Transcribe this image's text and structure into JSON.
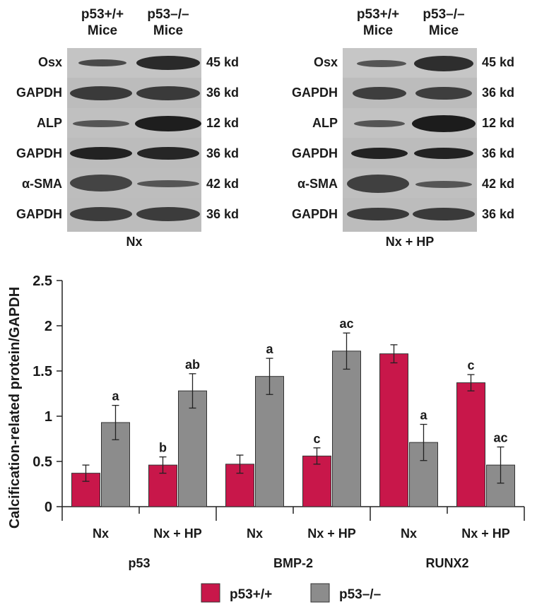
{
  "blots": {
    "left": {
      "header": {
        "col1_line1": "p53+/+",
        "col1_line2": "Mice",
        "col2_line1": "p53–/–",
        "col2_line2": "Mice"
      },
      "caption": "Nx",
      "rows": [
        {
          "protein": "Osx",
          "size": "45 kd"
        },
        {
          "protein": "GAPDH",
          "size": "36 kd"
        },
        {
          "protein": "ALP",
          "size": "12 kd"
        },
        {
          "protein": "GAPDH",
          "size": "36 kd"
        },
        {
          "protein": "α-SMA",
          "size": "42 kd"
        },
        {
          "protein": "GAPDH",
          "size": "36 kd"
        }
      ]
    },
    "right": {
      "header": {
        "col1_line1": "p53+/+",
        "col1_line2": "Mice",
        "col2_line1": "p53–/–",
        "col2_line2": "Mice"
      },
      "caption": "Nx + HP",
      "rows": [
        {
          "protein": "Osx",
          "size": "45 kd"
        },
        {
          "protein": "GAPDH",
          "size": "36 kd"
        },
        {
          "protein": "ALP",
          "size": "12 kd"
        },
        {
          "protein": "GAPDH",
          "size": "36 kd"
        },
        {
          "protein": "α-SMA",
          "size": "42 kd"
        },
        {
          "protein": "GAPDH",
          "size": "36 kd"
        }
      ]
    }
  },
  "chart_data": {
    "type": "bar",
    "title": "",
    "ylabel": "Calcification-related protein/GAPDH",
    "ylim": [
      0,
      2.5
    ],
    "yticks": [
      "0",
      "0.5",
      "1",
      "1.5",
      "2",
      "2.5"
    ],
    "groups": [
      "p53",
      "BMP-2",
      "RUNX2"
    ],
    "conditions": [
      "Nx",
      "Nx + HP",
      "Nx",
      "Nx + HP",
      "Nx",
      "Nx + HP"
    ],
    "legend_position": "bottom",
    "series": [
      {
        "name": "p53+/+",
        "color": "#c8174a",
        "values": [
          0.37,
          0.46,
          0.47,
          0.56,
          1.69,
          1.37
        ],
        "errors": [
          0.09,
          0.09,
          0.1,
          0.09,
          0.1,
          0.09
        ],
        "annotations": [
          "",
          "b",
          "",
          "c",
          "",
          "c"
        ]
      },
      {
        "name": "p53–/–",
        "color": "#8c8c8c",
        "values": [
          0.93,
          1.28,
          1.44,
          1.72,
          0.71,
          0.46
        ],
        "errors": [
          0.19,
          0.19,
          0.2,
          0.2,
          0.2,
          0.2
        ],
        "annotations": [
          "a",
          "ab",
          "a",
          "ac",
          "a",
          "ac"
        ]
      }
    ]
  }
}
